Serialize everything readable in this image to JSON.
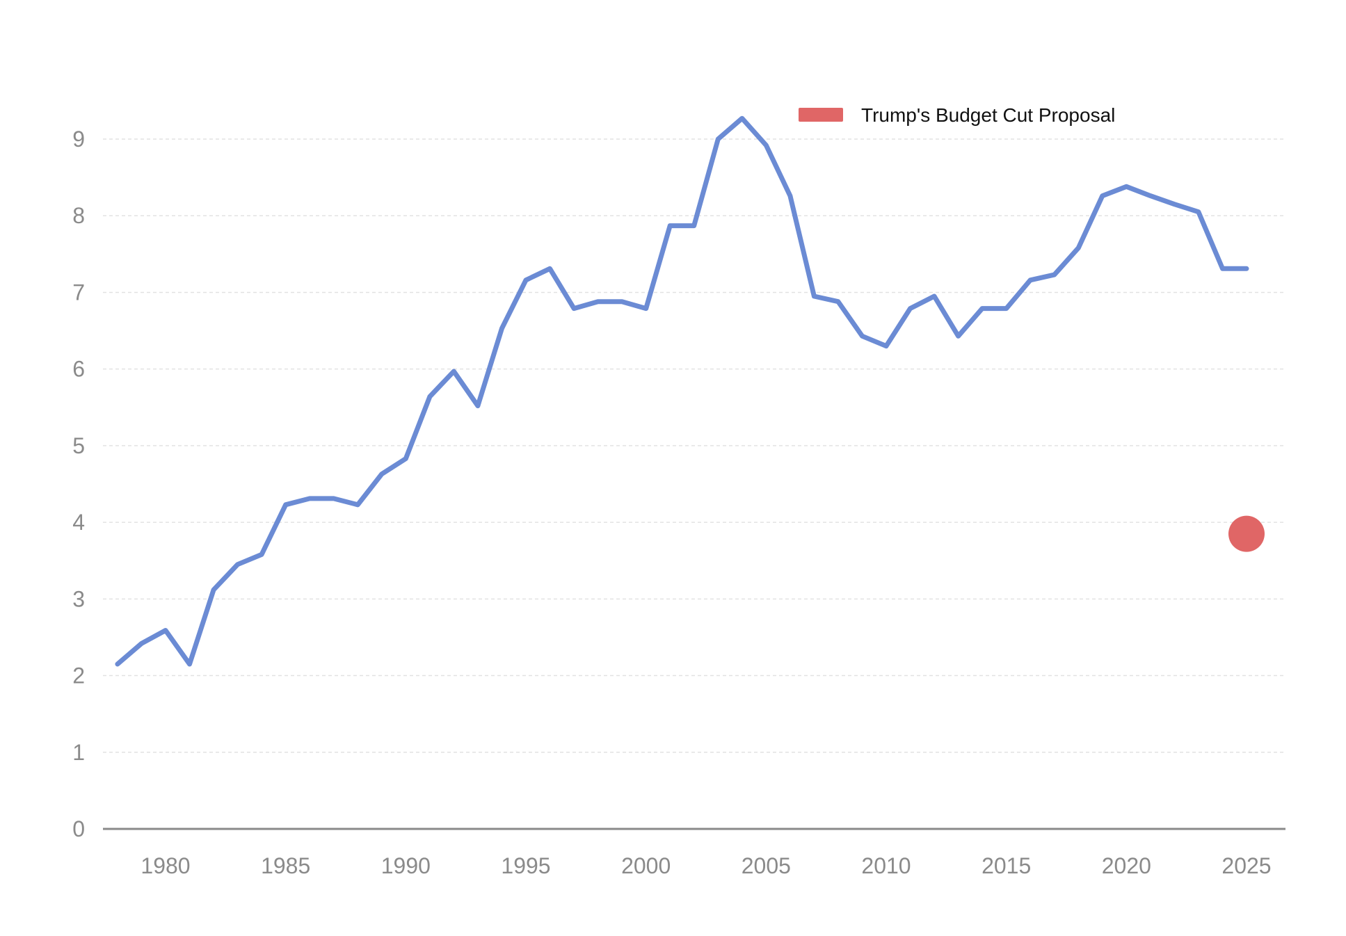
{
  "chart_data": {
    "type": "line",
    "title": "",
    "xlabel": "",
    "ylabel": "",
    "xlim": [
      1977.4,
      2026.6
    ],
    "ylim": [
      0,
      9.5
    ],
    "xticks": [
      1980,
      1985,
      1990,
      1995,
      2000,
      2005,
      2010,
      2015,
      2020,
      2025
    ],
    "xtick_labels": [
      "1980",
      "1985",
      "1990",
      "1995",
      "2000",
      "2005",
      "2010",
      "2015",
      "2020",
      "2025"
    ],
    "yticks": [
      0,
      1,
      2,
      3,
      4,
      5,
      6,
      7,
      8,
      9
    ],
    "ytick_labels": [
      "0",
      "1",
      "2",
      "3",
      "4",
      "5",
      "6",
      "7",
      "8",
      "9"
    ],
    "grid": true,
    "legend_position": "top-right",
    "series": [
      {
        "type": "line",
        "color": "#6b8bd4",
        "x": [
          1978,
          1979,
          1980,
          1981,
          1982,
          1983,
          1984,
          1985,
          1986,
          1987,
          1988,
          1989,
          1990,
          1991,
          1992,
          1993,
          1994,
          1995,
          1996,
          1997,
          1998,
          1999,
          2000,
          2001,
          2002,
          2003,
          2004,
          2005,
          2006,
          2007,
          2008,
          2009,
          2010,
          2011,
          2012,
          2013,
          2014,
          2015,
          2016,
          2017,
          2018,
          2019,
          2020,
          2021,
          2022,
          2023,
          2024,
          2025
        ],
        "y": [
          2.15,
          2.42,
          2.59,
          2.15,
          3.12,
          3.45,
          3.58,
          4.23,
          4.31,
          4.31,
          4.23,
          4.63,
          4.83,
          5.64,
          5.97,
          5.52,
          6.53,
          7.16,
          7.31,
          6.79,
          6.88,
          6.88,
          6.79,
          7.87,
          7.87,
          9.0,
          9.27,
          8.92,
          8.26,
          6.95,
          6.88,
          6.43,
          6.3,
          6.79,
          6.95,
          6.43,
          6.79,
          6.79,
          7.16,
          7.23,
          7.58,
          8.26,
          8.38,
          8.26,
          8.15,
          8.05,
          7.31,
          7.31
        ]
      },
      {
        "name": "Trump's Budget Cut Proposal",
        "type": "scatter",
        "color": "#e06666",
        "x": [
          2025
        ],
        "y": [
          3.85
        ]
      }
    ]
  }
}
